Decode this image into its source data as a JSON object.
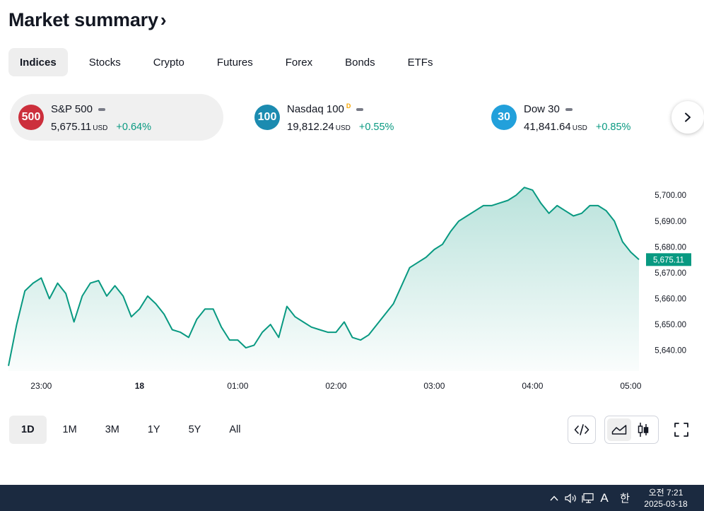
{
  "header": {
    "title": "Market summary",
    "title_chevron": "›"
  },
  "tabs": [
    {
      "label": "Indices",
      "active": true
    },
    {
      "label": "Stocks"
    },
    {
      "label": "Crypto"
    },
    {
      "label": "Futures"
    },
    {
      "label": "Forex"
    },
    {
      "label": "Bonds"
    },
    {
      "label": "ETFs"
    }
  ],
  "cards": [
    {
      "logo": "500",
      "logo_color": "#cc2f3c",
      "name": "S&P 500",
      "superscript": "",
      "value": "5,675.11",
      "currency": "USD",
      "change": "+0.64%",
      "active": true
    },
    {
      "logo": "100",
      "logo_color": "#1b8bb0",
      "name": "Nasdaq 100",
      "superscript": "D",
      "value": "19,812.24",
      "currency": "USD",
      "change": "+0.55%"
    },
    {
      "logo": "30",
      "logo_color": "#22a0db",
      "name": "Dow 30",
      "superscript": "",
      "value": "41,841.64",
      "currency": "USD",
      "change": "+0.85%"
    }
  ],
  "next_icon": "chevron-right-icon",
  "chart_data": {
    "type": "area",
    "color": "#089981",
    "last_value_label": "5,675.11",
    "last_value": 5675.11,
    "ylim": [
      5632,
      5714
    ],
    "y_ticks": [
      5640,
      5650,
      5660,
      5670,
      5680,
      5690,
      5700
    ],
    "y_tick_labels": [
      "5,640.00",
      "5,650.00",
      "5,660.00",
      "5,670.00",
      "5,680.00",
      "5,690.00",
      "5,700.00"
    ],
    "xlim": [
      22.667,
      5.1
    ],
    "x_ticks": [
      "23:00",
      "18",
      "01:00",
      "02:00",
      "03:00",
      "04:00",
      "05:00"
    ],
    "x": [
      "22:40",
      "22:45",
      "22:50",
      "22:55",
      "23:00",
      "23:05",
      "23:10",
      "23:15",
      "23:20",
      "23:25",
      "23:30",
      "23:35",
      "23:40",
      "23:45",
      "23:50",
      "23:55",
      "00:00",
      "00:05",
      "00:10",
      "00:15",
      "00:20",
      "00:25",
      "00:30",
      "00:35",
      "00:40",
      "00:45",
      "00:50",
      "00:55",
      "01:00",
      "01:05",
      "01:10",
      "01:15",
      "01:20",
      "01:25",
      "01:30",
      "01:35",
      "01:40",
      "01:45",
      "01:50",
      "01:55",
      "02:00",
      "02:05",
      "02:10",
      "02:15",
      "02:20",
      "02:25",
      "02:30",
      "02:35",
      "02:40",
      "02:45",
      "02:50",
      "02:55",
      "03:00",
      "03:05",
      "03:10",
      "03:15",
      "03:20",
      "03:25",
      "03:30",
      "03:35",
      "03:40",
      "03:45",
      "03:50",
      "03:55",
      "04:00",
      "04:05",
      "04:10",
      "04:15",
      "04:20",
      "04:25",
      "04:30",
      "04:35",
      "04:40",
      "04:45",
      "04:50",
      "04:55",
      "05:00",
      "05:05"
    ],
    "values": [
      5634,
      5650,
      5663,
      5666,
      5668,
      5660,
      5666,
      5662,
      5651,
      5661,
      5666,
      5667,
      5661,
      5665,
      5661,
      5653,
      5656,
      5661,
      5658,
      5654,
      5648,
      5647,
      5645,
      5652,
      5656,
      5656,
      5649,
      5644,
      5644,
      5641,
      5642,
      5647,
      5650,
      5645,
      5657,
      5653,
      5651,
      5649,
      5648,
      5647,
      5647,
      5651,
      5645,
      5644,
      5646,
      5650,
      5654,
      5658,
      5665,
      5672,
      5674,
      5676,
      5679,
      5681,
      5686,
      5690,
      5692,
      5694,
      5696,
      5696,
      5697,
      5698,
      5700,
      5703,
      5702,
      5697,
      5693,
      5696,
      5694,
      5692,
      5693,
      5696,
      5696,
      5694,
      5690,
      5682,
      5678,
      5675.11
    ]
  },
  "ranges": [
    {
      "label": "1D",
      "active": true
    },
    {
      "label": "1M"
    },
    {
      "label": "3M"
    },
    {
      "label": "1Y"
    },
    {
      "label": "5Y"
    },
    {
      "label": "All"
    }
  ],
  "tools": {
    "embed_icon": "code-icon",
    "area_icon": "area-chart-icon",
    "candles_icon": "candlestick-icon",
    "fullscreen_icon": "fullscreen-icon"
  },
  "taskbar": {
    "tray_icons": [
      "chevron-up-icon",
      "speaker-icon",
      "network-icon"
    ],
    "input_mode": "A",
    "ime": "한",
    "time": "오전 7:21",
    "date": "2025-03-18"
  }
}
